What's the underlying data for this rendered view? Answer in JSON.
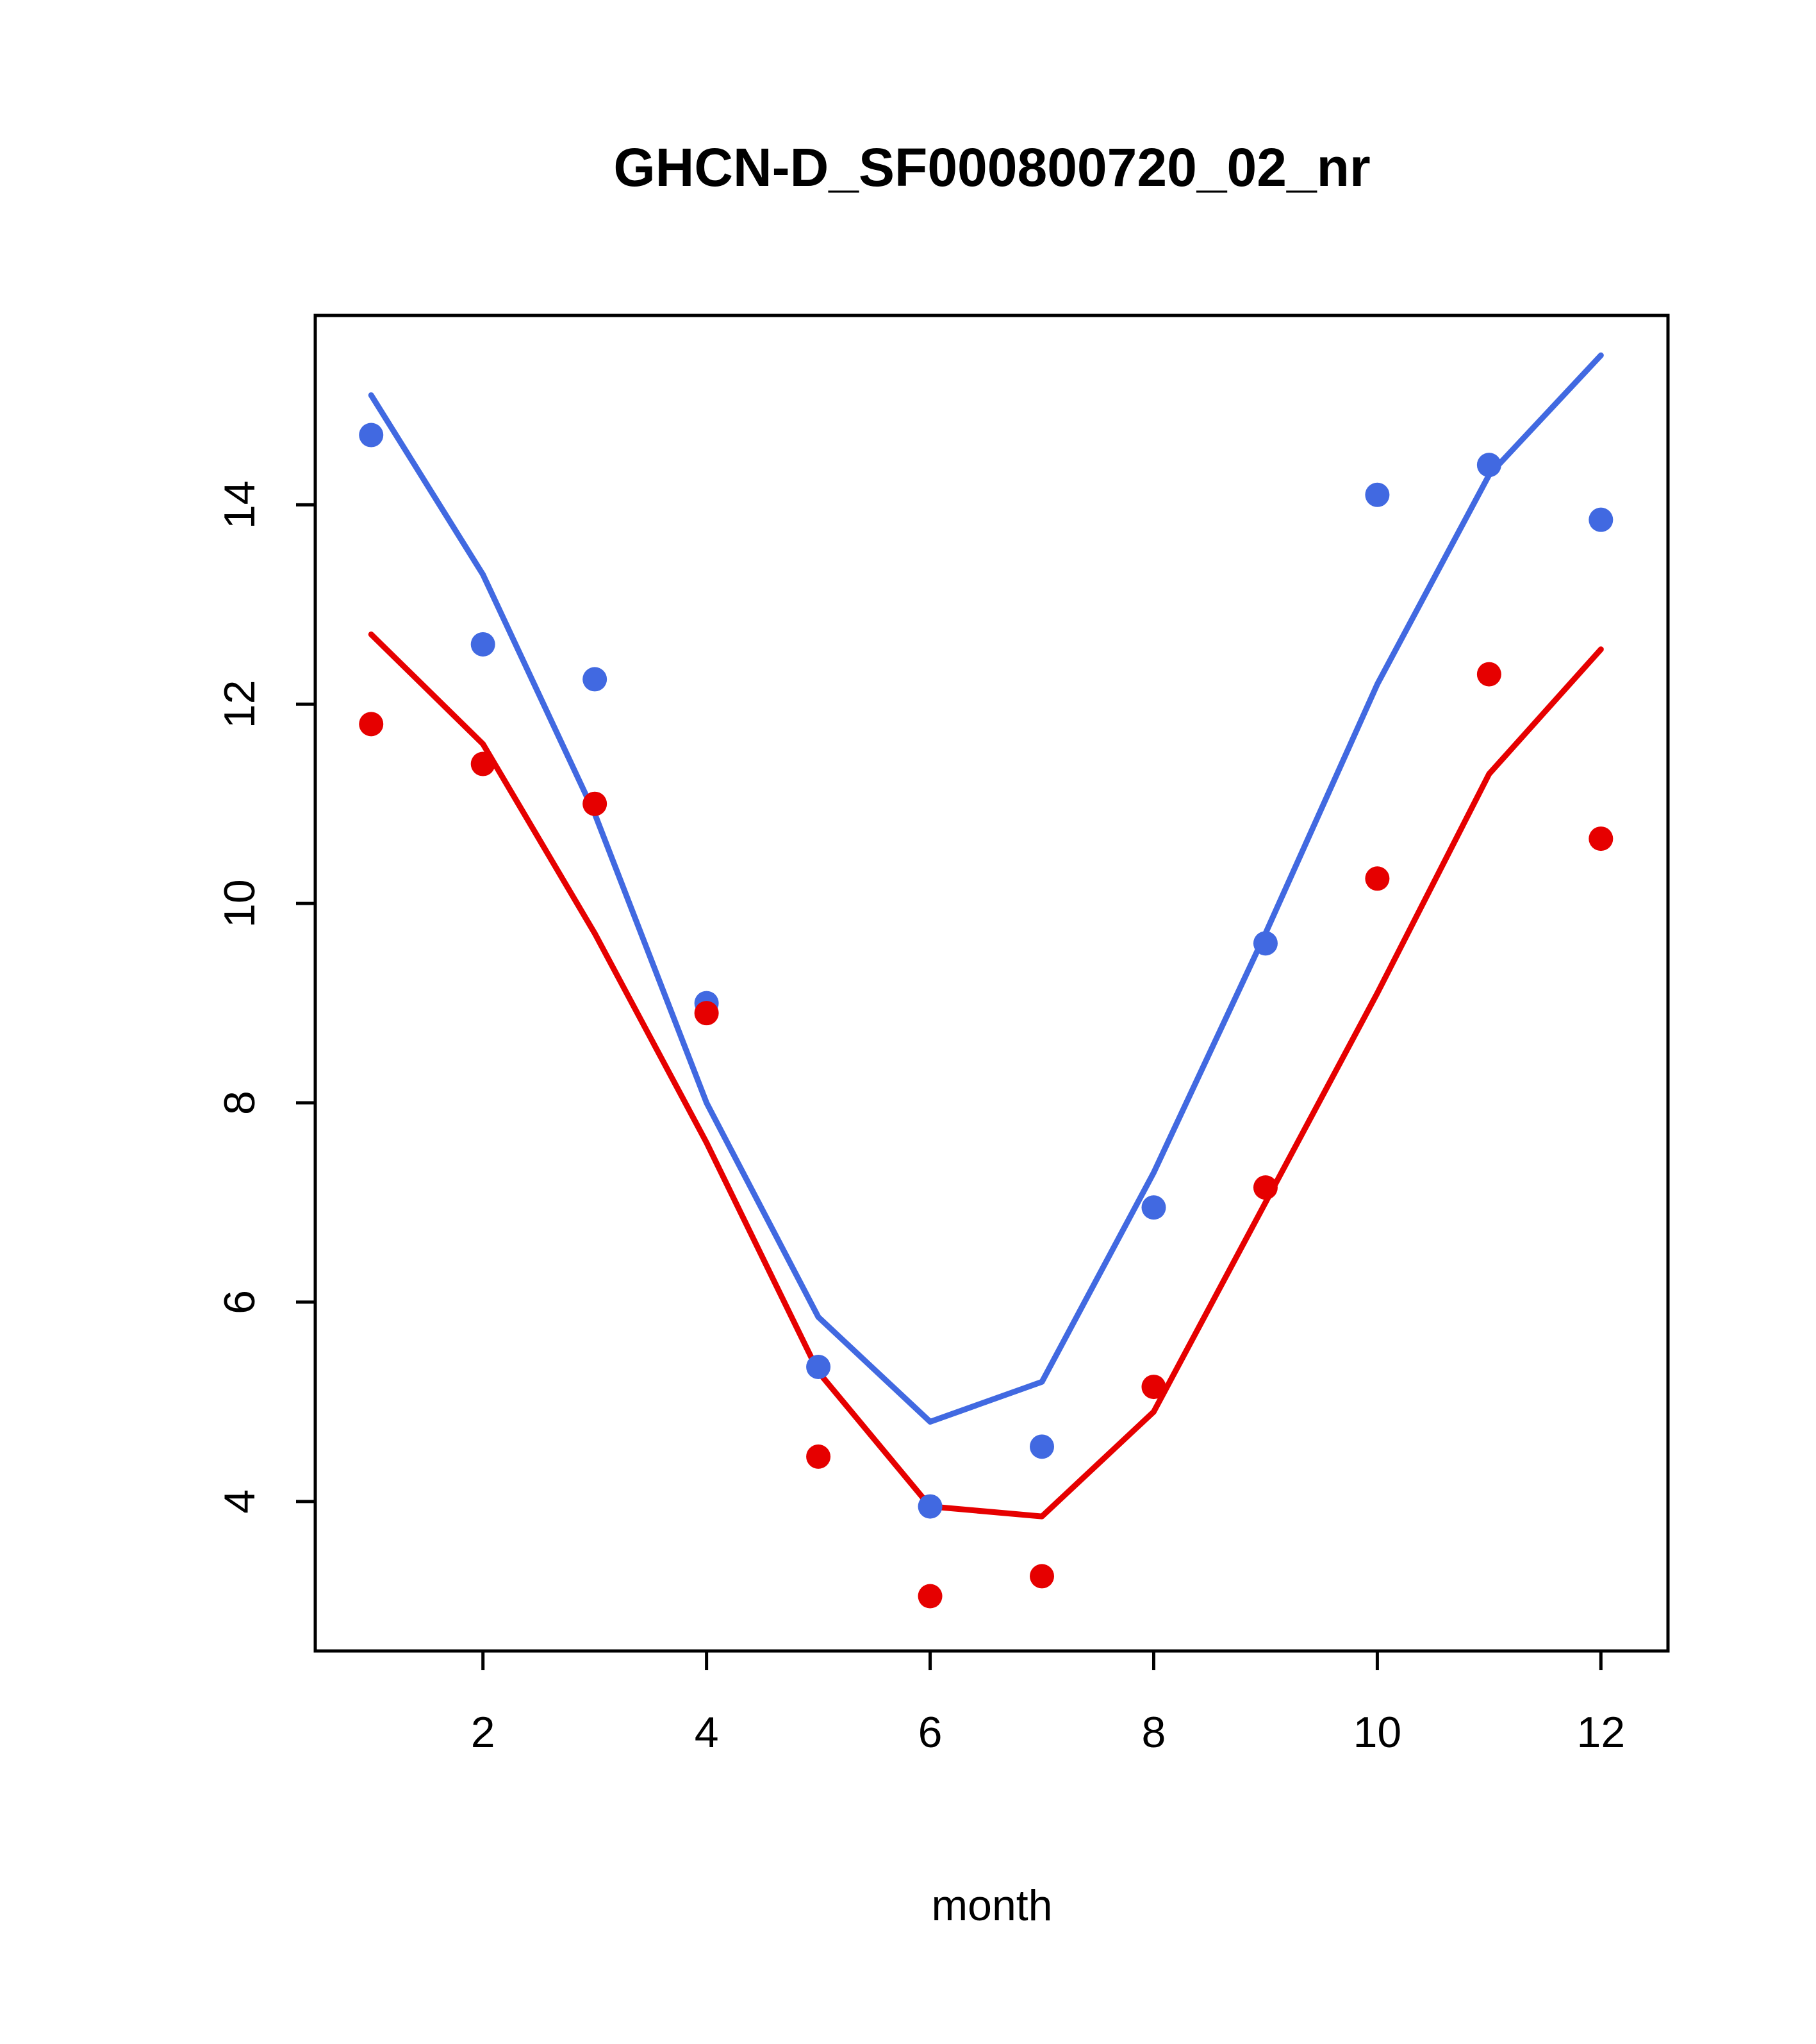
{
  "chart_data": {
    "type": "line",
    "title": "GHCN-D_SF000800720_02_nr",
    "xlabel": "month",
    "ylabel": "",
    "x": [
      1,
      2,
      3,
      4,
      5,
      6,
      7,
      8,
      9,
      10,
      11,
      12
    ],
    "xticks": [
      2,
      4,
      6,
      8,
      10,
      12
    ],
    "yticks": [
      4,
      6,
      8,
      10,
      12,
      14
    ],
    "xlim": [
      0.5,
      12.6
    ],
    "ylim": [
      2.5,
      15.9
    ],
    "grid": false,
    "legend": "none",
    "series": [
      {
        "name": "blue-line",
        "type": "line",
        "color": "#4169E1",
        "values": [
          15.1,
          13.3,
          10.9,
          8.0,
          5.85,
          4.8,
          5.2,
          7.3,
          9.7,
          12.2,
          14.3,
          15.5
        ]
      },
      {
        "name": "red-line",
        "type": "line",
        "color": "#E60000",
        "values": [
          12.7,
          11.6,
          9.7,
          7.6,
          5.3,
          3.95,
          3.85,
          4.9,
          7.0,
          9.1,
          11.3,
          12.55
        ]
      },
      {
        "name": "blue-points",
        "type": "scatter",
        "color": "#4169E1",
        "values": [
          14.7,
          12.6,
          12.25,
          9.0,
          5.35,
          3.95,
          4.55,
          6.95,
          9.6,
          14.1,
          14.4,
          13.85
        ]
      },
      {
        "name": "red-points",
        "type": "scatter",
        "color": "#E60000",
        "values": [
          11.8,
          11.4,
          11.0,
          8.9,
          4.45,
          3.05,
          3.25,
          5.15,
          7.15,
          10.25,
          12.3,
          10.65
        ]
      }
    ]
  }
}
